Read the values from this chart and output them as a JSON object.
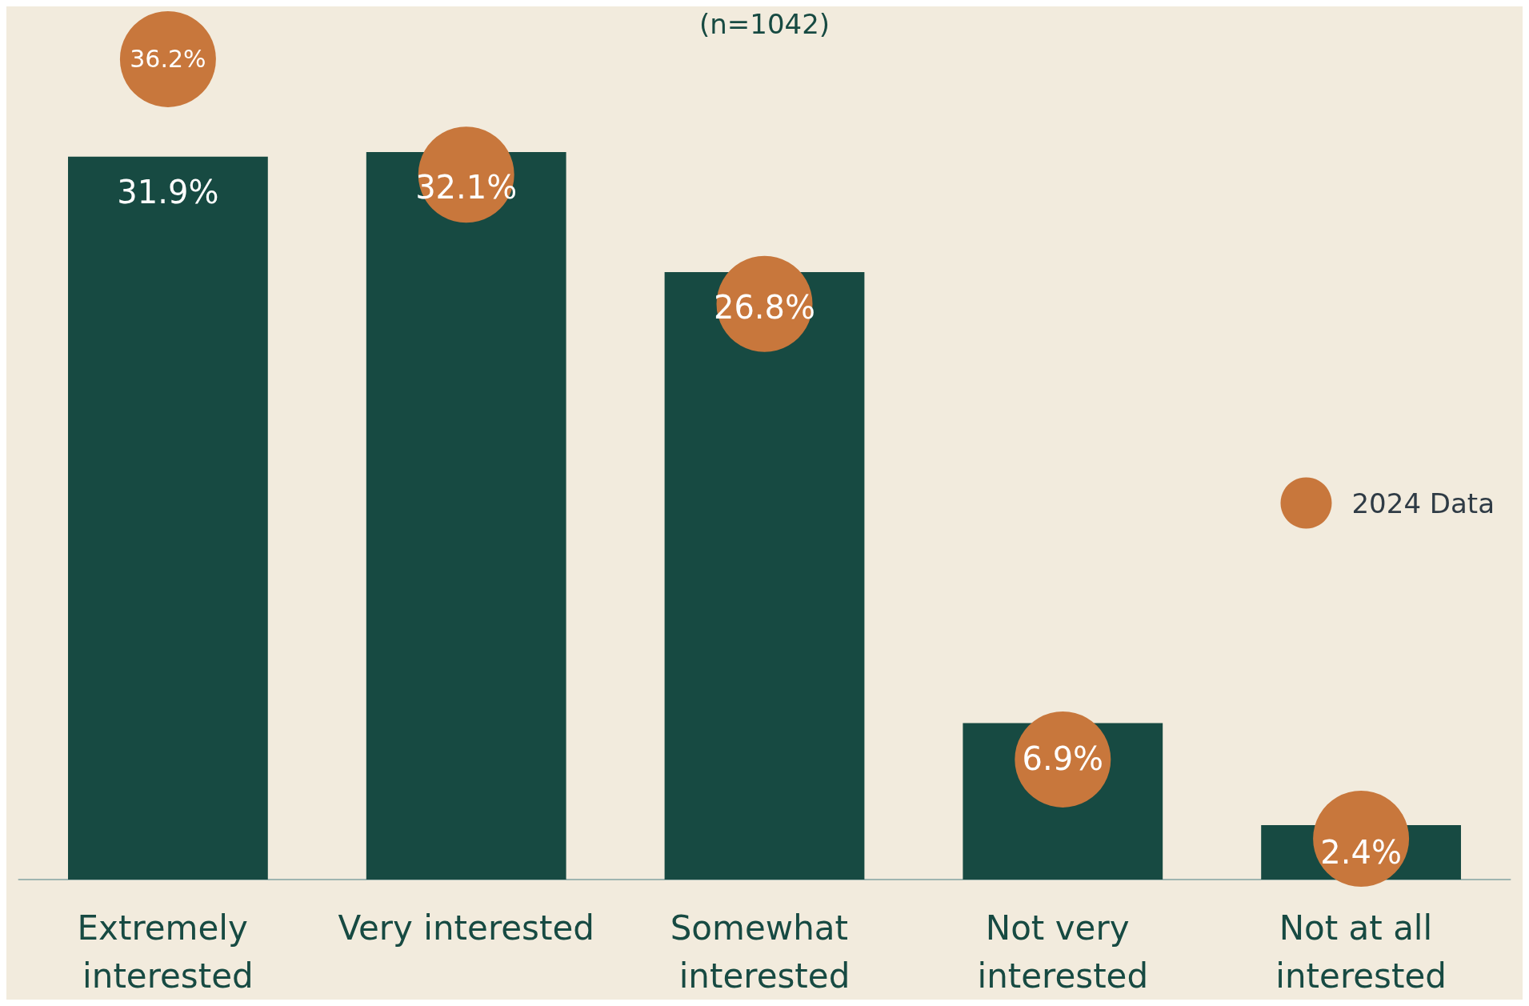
{
  "chart_data": {
    "type": "bar",
    "subtitle": "(n=1042)",
    "categories": [
      "Extremely interested",
      "Very interested",
      "Somewhat interested",
      "Not very interested",
      "Not at all interested"
    ],
    "legend": "right",
    "grid": false,
    "series": [
      {
        "color": "#174a42",
        "values": [
          31.9,
          32.1,
          26.8,
          6.9,
          2.4
        ],
        "value_labels": [
          "31.9%",
          "32.1%",
          "26.8%",
          "6.9%",
          "2.4%"
        ]
      },
      {
        "type": "scatter",
        "name": "2024 Data",
        "color": "#c8773c",
        "marker": "circle",
        "values": [
          36.2,
          31.1,
          25.4,
          5.3,
          1.8
        ],
        "value_labels": [
          "36.2%",
          null,
          null,
          null,
          null
        ]
      }
    ]
  }
}
